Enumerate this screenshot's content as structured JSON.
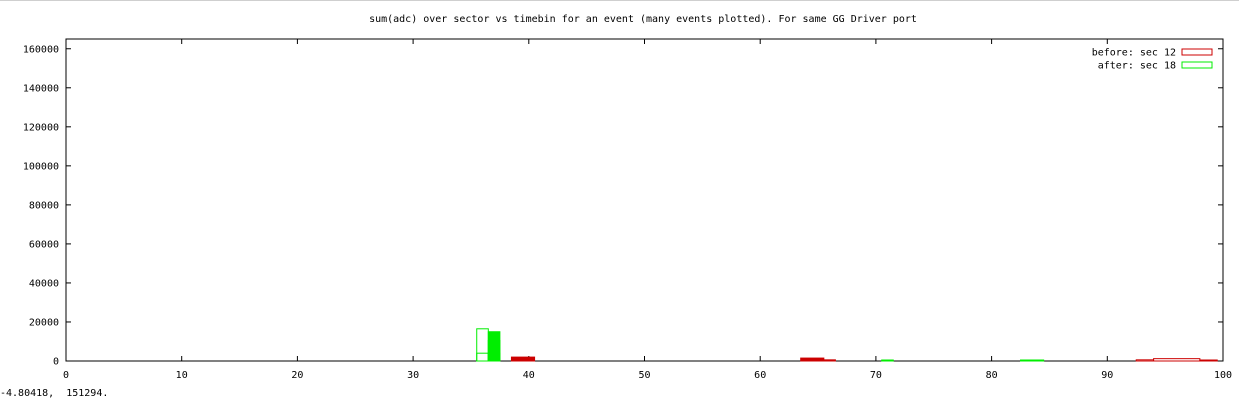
{
  "status_readout": "-4.80418,  151294.",
  "chart_data": {
    "type": "bar",
    "title": "sum(adc) over sector vs timebin for an event (many events plotted).  For same GG Driver port",
    "xlabel": "",
    "ylabel": "",
    "xlim": [
      0,
      100
    ],
    "ylim": [
      0,
      165000
    ],
    "xticks": [
      0,
      10,
      20,
      30,
      40,
      50,
      60,
      70,
      80,
      90,
      100
    ],
    "yticks": [
      0,
      20000,
      40000,
      60000,
      80000,
      100000,
      120000,
      140000,
      160000
    ],
    "grid": false,
    "legend": "top-right",
    "series": [
      {
        "name": "before: sec 12",
        "color": "#cc0000",
        "bars": [
          {
            "x0": 38.5,
            "x1": 40.5,
            "y": 2000,
            "filled": true
          },
          {
            "x0": 63.5,
            "x1": 65.5,
            "y": 1500,
            "filled": true
          },
          {
            "x0": 65.5,
            "x1": 66.5,
            "y": 600,
            "filled": true
          },
          {
            "x0": 92.5,
            "x1": 94.0,
            "y": 600,
            "filled": false
          },
          {
            "x0": 94.0,
            "x1": 98.0,
            "y": 1200,
            "filled": false
          },
          {
            "x0": 98.0,
            "x1": 99.5,
            "y": 500,
            "filled": false
          }
        ]
      },
      {
        "name": "after: sec 18",
        "color": "#00ee00",
        "bars": [
          {
            "x0": 35.5,
            "x1": 36.5,
            "y": 16500,
            "filled": false
          },
          {
            "x0": 35.5,
            "x1": 36.5,
            "y": 4000,
            "filled": false
          },
          {
            "x0": 36.5,
            "x1": 37.5,
            "y": 15000,
            "filled": true
          },
          {
            "x0": 36.5,
            "x1": 37.5,
            "y": 10500,
            "filled": false
          },
          {
            "x0": 36.5,
            "x1": 37.5,
            "y": 4000,
            "filled": false
          },
          {
            "x0": 70.5,
            "x1": 71.5,
            "y": 500,
            "filled": true
          },
          {
            "x0": 82.5,
            "x1": 84.5,
            "y": 400,
            "filled": true
          }
        ]
      }
    ]
  }
}
